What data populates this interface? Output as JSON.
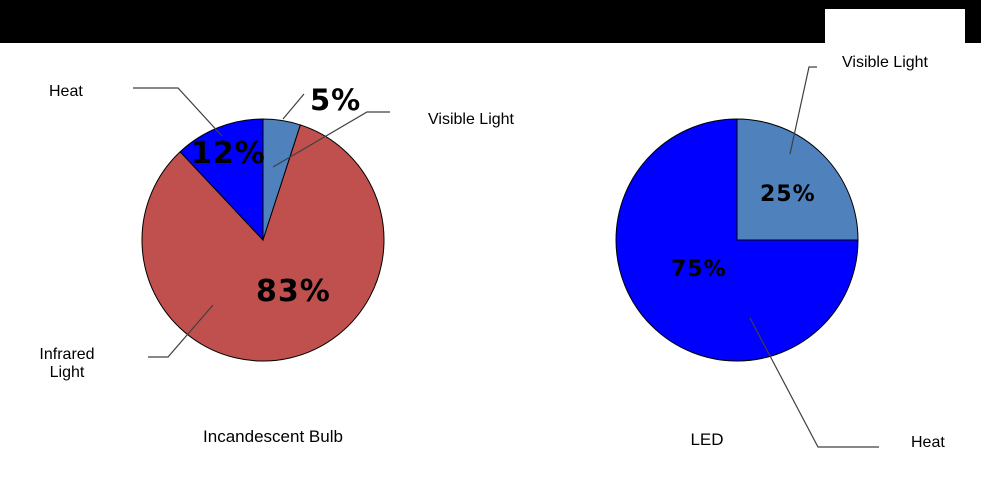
{
  "window": {
    "top_bar_color": "#000000",
    "top_bar_notch_color": "#FFFFFF",
    "background_color": "#FFFFFF",
    "leader_line_color": "#404040"
  },
  "chart_data": [
    {
      "type": "pie",
      "title": "Incandescent Bulb",
      "start_angle_deg": 0,
      "direction": "clockwise",
      "outline_color": "#000000",
      "legend": "callout-labels",
      "slices": [
        {
          "label": "Visible Light",
          "value": 5,
          "percent_label": "5%",
          "color": "#4F81BD"
        },
        {
          "label": "Infrared Light",
          "value": 83,
          "percent_label": "83%",
          "color": "#C0504D"
        },
        {
          "label": "Heat",
          "value": 12,
          "percent_label": "12%",
          "color": "#0000FF"
        }
      ]
    },
    {
      "type": "pie",
      "title": "LED",
      "start_angle_deg": 0,
      "direction": "clockwise",
      "outline_color": "#000000",
      "legend": "callout-labels",
      "slices": [
        {
          "label": "Visible Light",
          "value": 25,
          "percent_label": "25%",
          "color": "#4F81BD"
        },
        {
          "label": "Heat",
          "value": 75,
          "percent_label": "75%",
          "color": "#0000FF"
        }
      ]
    }
  ]
}
